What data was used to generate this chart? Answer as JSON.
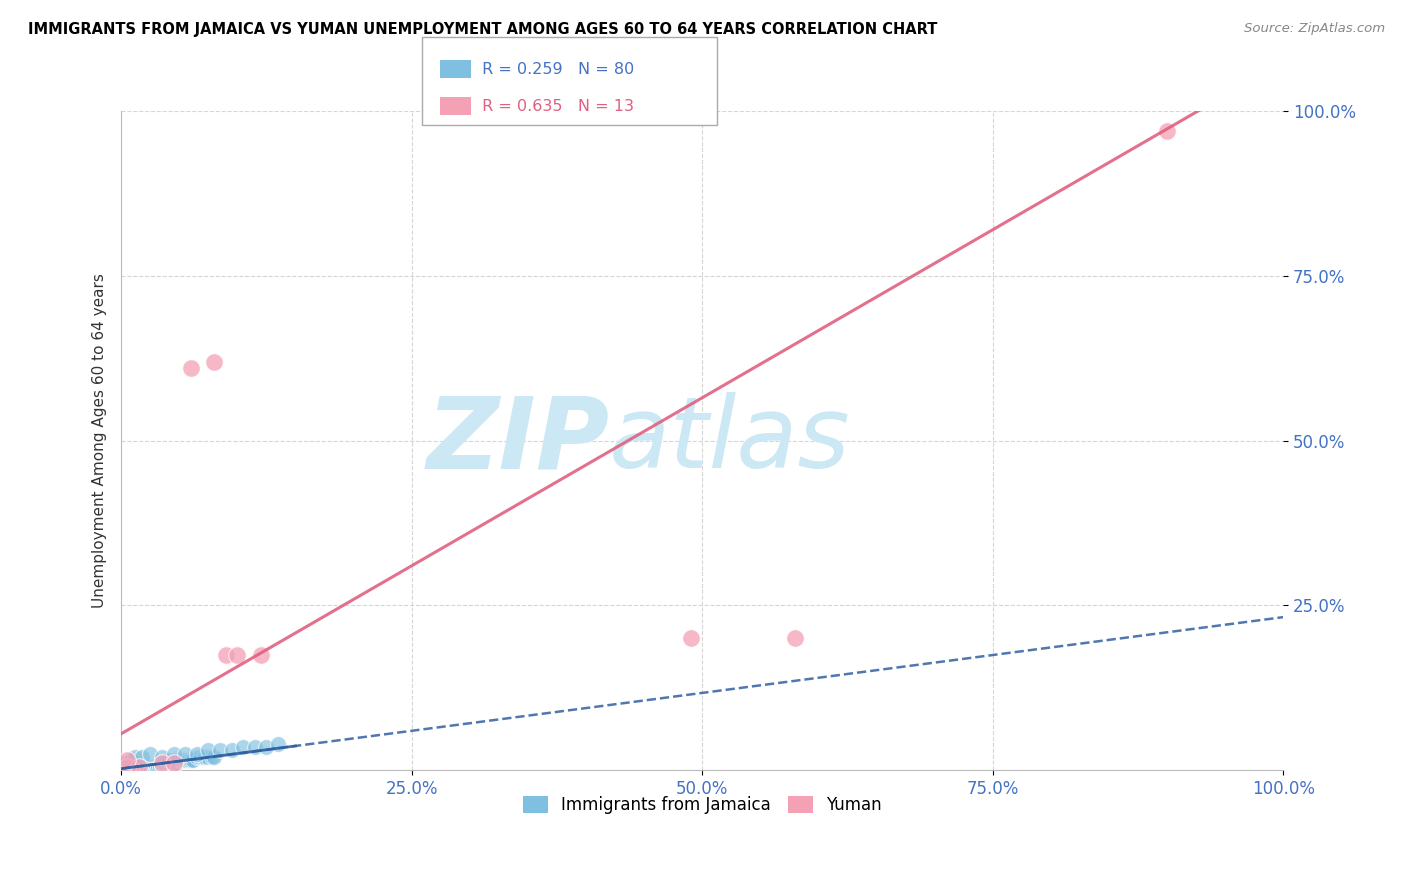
{
  "title": "IMMIGRANTS FROM JAMAICA VS YUMAN UNEMPLOYMENT AMONG AGES 60 TO 64 YEARS CORRELATION CHART",
  "source": "Source: ZipAtlas.com",
  "ylabel": "Unemployment Among Ages 60 to 64 years",
  "xlim": [
    0,
    1.0
  ],
  "ylim": [
    0,
    1.0
  ],
  "xticks": [
    0.0,
    0.25,
    0.5,
    0.75,
    1.0
  ],
  "xticklabels": [
    "0.0%",
    "25.0%",
    "50.0%",
    "75.0%",
    "100.0%"
  ],
  "yticks": [
    0.25,
    0.5,
    0.75,
    1.0
  ],
  "yticklabels": [
    "25.0%",
    "50.0%",
    "75.0%",
    "100.0%"
  ],
  "legend_r_blue": "R = 0.259",
  "legend_n_blue": "N = 80",
  "legend_r_pink": "R = 0.635",
  "legend_n_pink": "N = 13",
  "legend_label_blue": "Immigrants from Jamaica",
  "legend_label_pink": "Yuman",
  "blue_color": "#7fbfdf",
  "pink_color": "#f4a0b5",
  "blue_line_color": "#3060a0",
  "pink_line_color": "#e06080",
  "watermark_line1": "ZIP",
  "watermark_line2": "atlas",
  "watermark_color": "#cce8f4",
  "blue_scatter_x": [
    0.001,
    0.002,
    0.003,
    0.003,
    0.004,
    0.004,
    0.005,
    0.005,
    0.006,
    0.006,
    0.007,
    0.007,
    0.008,
    0.008,
    0.009,
    0.01,
    0.01,
    0.011,
    0.012,
    0.012,
    0.013,
    0.014,
    0.015,
    0.015,
    0.016,
    0.017,
    0.018,
    0.019,
    0.02,
    0.02,
    0.021,
    0.022,
    0.023,
    0.025,
    0.026,
    0.027,
    0.028,
    0.03,
    0.031,
    0.032,
    0.033,
    0.035,
    0.036,
    0.038,
    0.04,
    0.041,
    0.043,
    0.045,
    0.046,
    0.048,
    0.05,
    0.052,
    0.054,
    0.056,
    0.058,
    0.06,
    0.062,
    0.065,
    0.068,
    0.07,
    0.072,
    0.075,
    0.078,
    0.08,
    0.003,
    0.008,
    0.012,
    0.018,
    0.025,
    0.035,
    0.045,
    0.055,
    0.065,
    0.075,
    0.085,
    0.095,
    0.105,
    0.115,
    0.125,
    0.135
  ],
  "blue_scatter_y": [
    0.0,
    0.0,
    0.0,
    0.005,
    0.0,
    0.005,
    0.0,
    0.005,
    0.0,
    0.005,
    0.0,
    0.005,
    0.0,
    0.005,
    0.0,
    0.0,
    0.005,
    0.0,
    0.0,
    0.005,
    0.0,
    0.0,
    0.0,
    0.005,
    0.0,
    0.0,
    0.0,
    0.0,
    0.0,
    0.005,
    0.0,
    0.0,
    0.0,
    0.005,
    0.0,
    0.005,
    0.0,
    0.005,
    0.0,
    0.005,
    0.005,
    0.005,
    0.01,
    0.01,
    0.01,
    0.015,
    0.01,
    0.01,
    0.015,
    0.01,
    0.015,
    0.015,
    0.015,
    0.015,
    0.015,
    0.015,
    0.015,
    0.02,
    0.02,
    0.02,
    0.02,
    0.02,
    0.02,
    0.02,
    0.01,
    0.015,
    0.02,
    0.02,
    0.025,
    0.02,
    0.025,
    0.025,
    0.025,
    0.03,
    0.03,
    0.03,
    0.035,
    0.035,
    0.035,
    0.04
  ],
  "pink_scatter_x": [
    0.005,
    0.015,
    0.035,
    0.045,
    0.06,
    0.08,
    0.09,
    0.1,
    0.12,
    0.49,
    0.58,
    0.9,
    0.005
  ],
  "pink_scatter_y": [
    0.005,
    0.005,
    0.01,
    0.01,
    0.61,
    0.62,
    0.175,
    0.175,
    0.175,
    0.2,
    0.2,
    0.97,
    0.015
  ],
  "blue_trend_slope": 0.23,
  "blue_trend_intercept": 0.002,
  "pink_trend_slope": 1.02,
  "pink_trend_intercept": 0.055
}
